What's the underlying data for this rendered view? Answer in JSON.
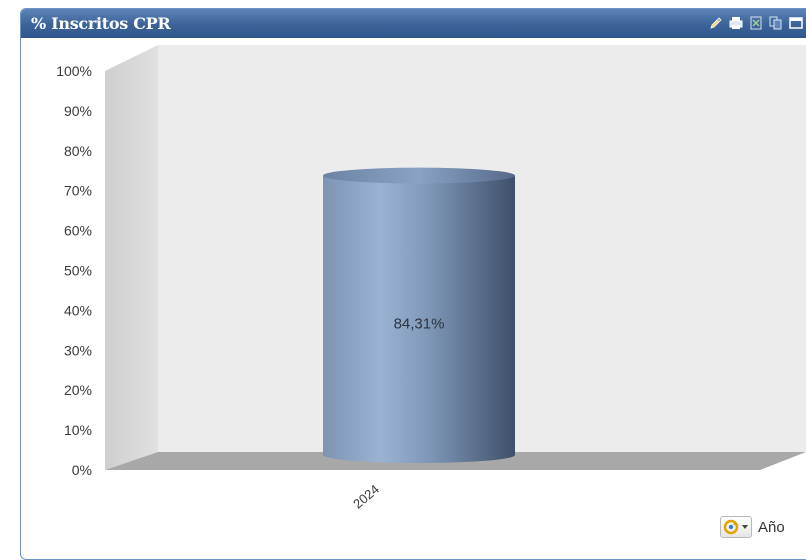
{
  "panel": {
    "title": "% Inscritos CPR",
    "toolbar_icons": [
      "pencil-icon",
      "print-icon",
      "excel-icon",
      "copy-icon",
      "window-icon"
    ]
  },
  "footer": {
    "icon": "refresh-dropdown-icon",
    "label": "Año"
  },
  "colors": {
    "titlebar": "#3b6398",
    "plot_back": "#ececec",
    "plot_side": "#d9d9d9",
    "floor": "#a9a9a9",
    "bar_light": "#98b1d0",
    "bar_dark": "#3f526b"
  },
  "chart_data": {
    "type": "bar",
    "style": "3d-cylinder",
    "categories": [
      "2024"
    ],
    "values": [
      84.31
    ],
    "data_labels": [
      "84,31%"
    ],
    "yticks": [
      "0%",
      "10%",
      "20%",
      "30%",
      "40%",
      "50%",
      "60%",
      "70%",
      "80%",
      "90%",
      "100%"
    ],
    "ylim": [
      0,
      100
    ],
    "grid": false,
    "legend": "none"
  }
}
